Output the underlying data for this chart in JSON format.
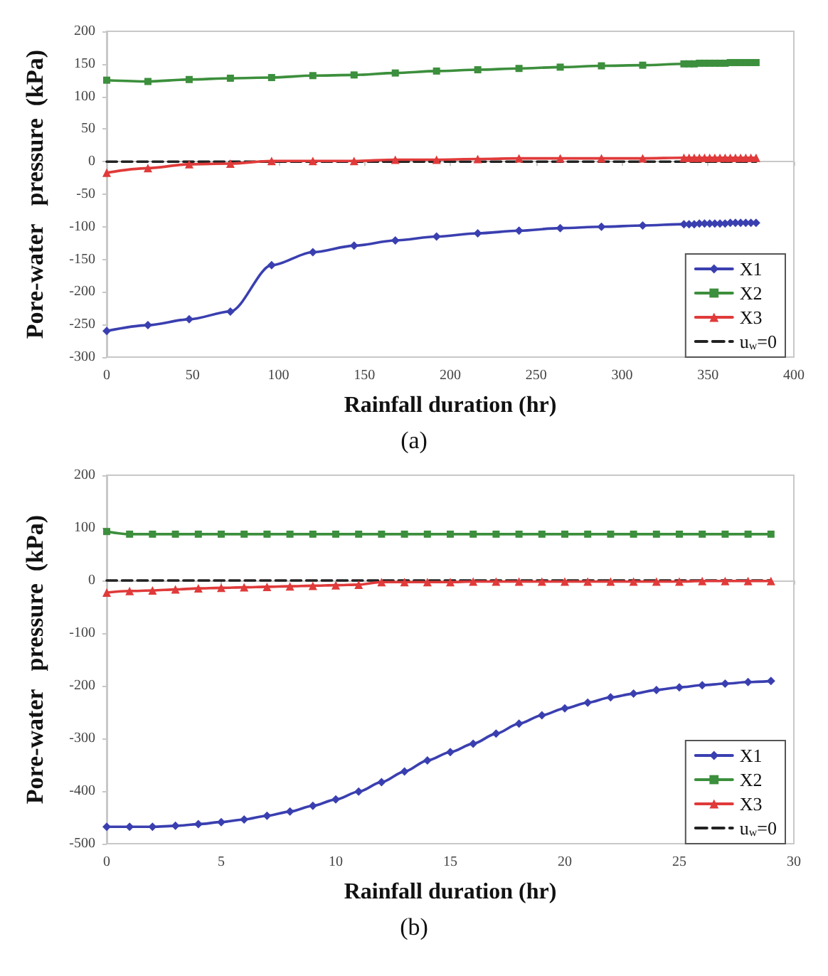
{
  "chart_data": [
    {
      "type": "line",
      "xlabel": "Rainfall duration (hr)",
      "ylabel": "Pore-water   pressure  (kPa)",
      "annotations": [
        "(a)"
      ],
      "xlim": [
        0,
        400
      ],
      "xticks": [
        0,
        50,
        100,
        150,
        200,
        250,
        300,
        350,
        400
      ],
      "ylim": [
        -300,
        200
      ],
      "yticks": [
        -300,
        -250,
        -200,
        -150,
        -100,
        -50,
        0,
        50,
        100,
        150,
        200
      ],
      "x": [
        0,
        24,
        48,
        72,
        96,
        120,
        144,
        168,
        192,
        216,
        240,
        264,
        288,
        312,
        336,
        339,
        342,
        345,
        348,
        351,
        354,
        357,
        360,
        363,
        366,
        369,
        372,
        375,
        378
      ],
      "legend": "bottom right",
      "series": [
        {
          "name": "X1",
          "color": "#3a3fb0",
          "marker": "diamond",
          "values": [
            -260,
            -251,
            -242,
            -230,
            -159,
            -139,
            -129,
            -121,
            -115,
            -110,
            -106,
            -102,
            -100,
            -98,
            -96,
            -96,
            -96,
            -95,
            -95,
            -95,
            -95,
            -95,
            -95,
            -94,
            -94,
            -94,
            -94,
            -94,
            -94
          ]
        },
        {
          "name": "X2",
          "color": "#3c8f3c",
          "marker": "square",
          "values": [
            125,
            123,
            126,
            128,
            129,
            132,
            133,
            136,
            139,
            141,
            143,
            145,
            147,
            148,
            150,
            150,
            150,
            151,
            151,
            151,
            151,
            151,
            151,
            152,
            152,
            152,
            152,
            152,
            152
          ]
        },
        {
          "name": "X3",
          "color": "#e03a3a",
          "marker": "triangle",
          "values": [
            -17,
            -10,
            -4,
            -3,
            1,
            1,
            1,
            3,
            3,
            4,
            5,
            5,
            5,
            5,
            6,
            6,
            6,
            6,
            6,
            6,
            6,
            6,
            6,
            6,
            6,
            6,
            6,
            6,
            6
          ]
        },
        {
          "name": "u$_{w}$=0",
          "color": "#222222",
          "marker": "none",
          "line_style": "dashed",
          "x": [
            0,
            378
          ],
          "values": [
            0,
            0
          ]
        }
      ]
    },
    {
      "type": "line",
      "xlabel": "Rainfall duration (hr)",
      "ylabel": "Pore-water   pressure  (kPa)",
      "annotations": [
        "(b)"
      ],
      "xlim": [
        0,
        30
      ],
      "xticks": [
        0,
        5,
        10,
        15,
        20,
        25,
        30
      ],
      "ylim": [
        -500,
        200
      ],
      "yticks": [
        -500,
        -400,
        -300,
        -200,
        -100,
        0,
        100,
        200
      ],
      "x": [
        0,
        1,
        2,
        3,
        4,
        5,
        6,
        7,
        8,
        9,
        10,
        11,
        12,
        13,
        14,
        15,
        16,
        17,
        18,
        19,
        20,
        21,
        22,
        23,
        24,
        25,
        26,
        27,
        28,
        29
      ],
      "legend": "bottom right",
      "series": [
        {
          "name": "X1",
          "color": "#3a3fb0",
          "marker": "diamond",
          "values": [
            -468,
            -468,
            -468,
            -466,
            -463,
            -459,
            -454,
            -447,
            -439,
            -428,
            -416,
            -401,
            -383,
            -363,
            -342,
            -326,
            -310,
            -291,
            -272,
            -256,
            -243,
            -232,
            -222,
            -215,
            -208,
            -203,
            -199,
            -196,
            -193,
            -191
          ]
        },
        {
          "name": "X2",
          "color": "#3c8f3c",
          "marker": "square",
          "values": [
            93,
            88,
            88,
            88,
            88,
            88,
            88,
            88,
            88,
            88,
            88,
            88,
            88,
            88,
            88,
            88,
            88,
            88,
            88,
            88,
            88,
            88,
            88,
            88,
            88,
            88,
            88,
            88,
            88,
            88
          ]
        },
        {
          "name": "X3",
          "color": "#e03a3a",
          "marker": "triangle",
          "values": [
            -23,
            -20,
            -19,
            -17,
            -15,
            -14,
            -13,
            -12,
            -11,
            -10,
            -9,
            -8,
            -3,
            -3,
            -3,
            -3,
            -2,
            -2,
            -2,
            -2,
            -2,
            -2,
            -2,
            -2,
            -2,
            -2,
            -1,
            -1,
            -1,
            -1
          ]
        },
        {
          "name": "u$_{w}$=0",
          "color": "#222222",
          "marker": "none",
          "line_style": "dashed",
          "x": [
            0,
            29
          ],
          "values": [
            0,
            0
          ]
        }
      ]
    }
  ]
}
